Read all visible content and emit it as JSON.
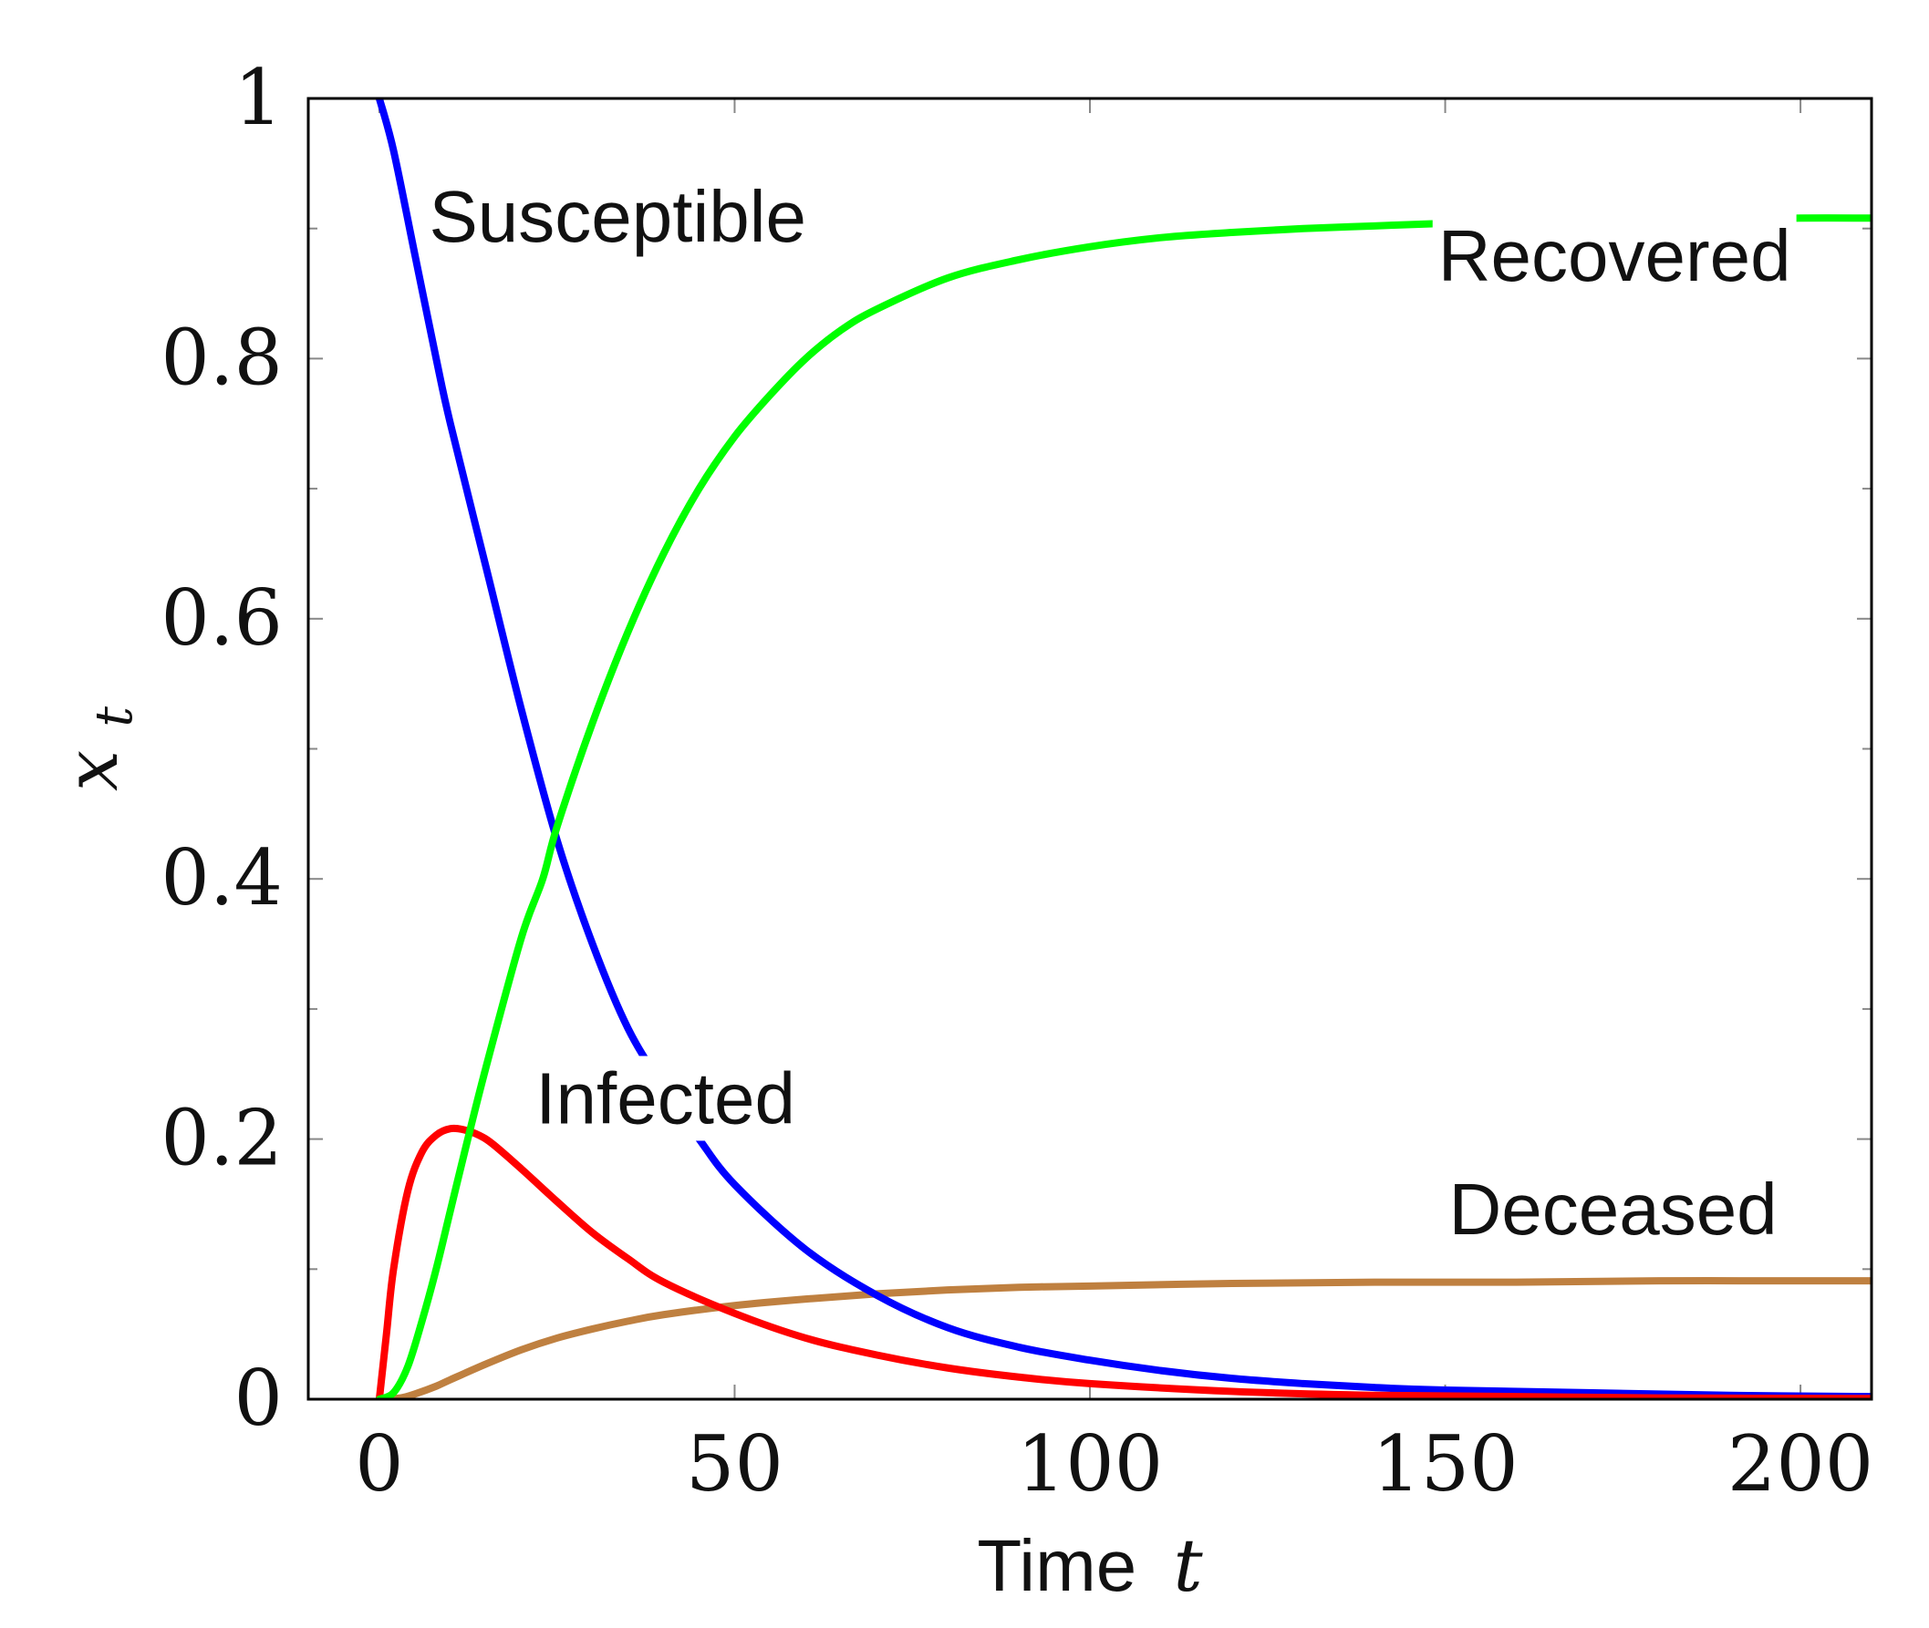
{
  "chart_data": {
    "type": "line",
    "xlabel": {
      "text": "Time",
      "var": "t"
    },
    "ylabel": {
      "base": "x",
      "sub": "t"
    },
    "xlim": [
      -10,
      210
    ],
    "ylim": [
      0,
      1
    ],
    "x_ticks": [
      0,
      50,
      100,
      150,
      200
    ],
    "x_tick_labels": [
      "0",
      "50",
      "100",
      "150",
      "200"
    ],
    "y_ticks": [
      0,
      0.2,
      0.4,
      0.6,
      0.8,
      1
    ],
    "y_tick_labels": [
      "0",
      "0.2",
      "0.4",
      "0.6",
      "0.8",
      "1"
    ],
    "y_minor_ticks": [
      0.1,
      0.3,
      0.5,
      0.7,
      0.9
    ],
    "grid": false,
    "legend": "inline labels",
    "series": [
      {
        "name": "Susceptible",
        "color": "#0000ff",
        "x": [
          0,
          2,
          5,
          8,
          10,
          15,
          20,
          25,
          30,
          35,
          40,
          45,
          50,
          60,
          70,
          80,
          90,
          100,
          110,
          120,
          130,
          140,
          150,
          170,
          190,
          210
        ],
        "y": [
          1.0,
          0.96,
          0.88,
          0.8,
          0.75,
          0.64,
          0.53,
          0.43,
          0.35,
          0.285,
          0.24,
          0.2,
          0.165,
          0.115,
          0.08,
          0.055,
          0.04,
          0.03,
          0.022,
          0.016,
          0.012,
          0.009,
          0.007,
          0.005,
          0.003,
          0.002
        ]
      },
      {
        "name": "Infected",
        "color": "#ff0000",
        "x": [
          0,
          1,
          2,
          4,
          6,
          8,
          10,
          12,
          14,
          16,
          20,
          25,
          30,
          35,
          40,
          50,
          60,
          70,
          80,
          90,
          100,
          120,
          140,
          160,
          180,
          210
        ],
        "y": [
          0,
          0.05,
          0.1,
          0.16,
          0.19,
          0.203,
          0.208,
          0.207,
          0.203,
          0.196,
          0.177,
          0.152,
          0.128,
          0.108,
          0.09,
          0.066,
          0.047,
          0.034,
          0.024,
          0.017,
          0.012,
          0.006,
          0.003,
          0.002,
          0.001,
          0.0005
        ]
      },
      {
        "name": "Recovered",
        "color": "#00ff00",
        "x": [
          0,
          2,
          4,
          6,
          8,
          10,
          12,
          15,
          20,
          23,
          25,
          30,
          35,
          40,
          45,
          50,
          55,
          60,
          65,
          70,
          80,
          90,
          100,
          110,
          120,
          130,
          140,
          150,
          160,
          170,
          180,
          190,
          200,
          210
        ],
        "y": [
          0,
          0.005,
          0.025,
          0.06,
          0.1,
          0.145,
          0.19,
          0.255,
          0.355,
          0.4,
          0.44,
          0.52,
          0.59,
          0.65,
          0.7,
          0.74,
          0.772,
          0.8,
          0.822,
          0.838,
          0.862,
          0.876,
          0.886,
          0.893,
          0.897,
          0.9,
          0.902,
          0.904,
          0.905,
          0.906,
          0.907,
          0.907,
          0.908,
          0.908
        ]
      },
      {
        "name": "Deceased",
        "color": "#bf8040",
        "x": [
          0,
          3,
          5,
          8,
          10,
          15,
          20,
          25,
          30,
          35,
          40,
          50,
          60,
          70,
          80,
          90,
          100,
          120,
          140,
          160,
          180,
          200,
          210
        ],
        "y": [
          0,
          0.001,
          0.004,
          0.01,
          0.015,
          0.027,
          0.038,
          0.047,
          0.054,
          0.06,
          0.065,
          0.072,
          0.077,
          0.081,
          0.084,
          0.086,
          0.087,
          0.089,
          0.09,
          0.09,
          0.091,
          0.091,
          0.091
        ]
      }
    ],
    "annotations": [
      {
        "text": "Susceptible",
        "x": 7,
        "y": 0.89,
        "series": 0
      },
      {
        "text": "Recovered",
        "x": 149,
        "y": 0.86,
        "series": 2
      },
      {
        "text": "Infected",
        "x": 22,
        "y": 0.212,
        "series": 1
      },
      {
        "text": "Deceased",
        "x": 150.5,
        "y": 0.127,
        "series": 3
      }
    ]
  }
}
